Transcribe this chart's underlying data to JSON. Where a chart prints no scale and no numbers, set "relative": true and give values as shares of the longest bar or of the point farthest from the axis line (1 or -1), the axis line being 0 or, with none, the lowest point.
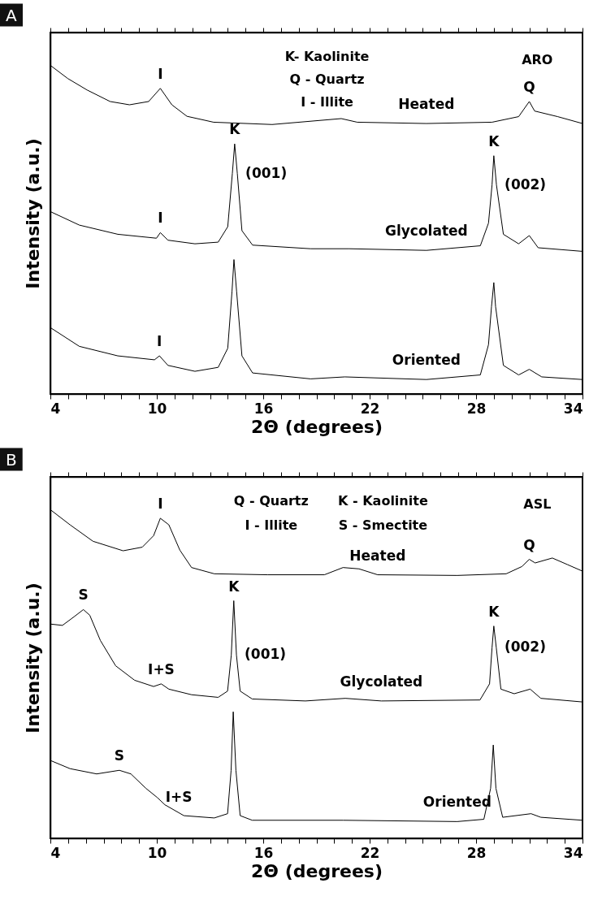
{
  "chart_data": [
    {
      "type": "line",
      "title": "A",
      "xlabel": "2Θ (degrees)",
      "ylabel": "Intensity (a.u.)",
      "relative": true,
      "legend": false,
      "grid": false,
      "marker": "none",
      "line_style": "solid",
      "xlim": [
        4,
        34
      ],
      "xticks": [
        4,
        {
          "value": 5,
          "label": null
        },
        {
          "value": 6,
          "label": null
        },
        {
          "value": 7,
          "label": null
        },
        {
          "value": 8,
          "label": null
        },
        {
          "value": 9,
          "label": null
        },
        10,
        {
          "value": 11,
          "label": null
        },
        {
          "value": 12,
          "label": null
        },
        {
          "value": 13,
          "label": null
        },
        {
          "value": 14,
          "label": null
        },
        {
          "value": 15,
          "label": null
        },
        16,
        {
          "value": 17,
          "label": null
        },
        {
          "value": 18,
          "label": null
        },
        {
          "value": 19,
          "label": null
        },
        {
          "value": 20,
          "label": null
        },
        {
          "value": 21,
          "label": null
        },
        22,
        {
          "value": 23,
          "label": null
        },
        {
          "value": 24,
          "label": null
        },
        {
          "value": 25,
          "label": null
        },
        {
          "value": 26,
          "label": null
        },
        {
          "value": 27,
          "label": null
        },
        28,
        {
          "value": 29,
          "label": null
        },
        {
          "value": 30,
          "label": null
        },
        {
          "value": 31,
          "label": null
        },
        {
          "value": 32,
          "label": null
        },
        {
          "value": 33,
          "label": null
        },
        34
      ],
      "series": [
        {
          "name": "Heated",
          "color": "#000000",
          "x": [
            4,
            4.98,
            6.07,
            7.37,
            8.46,
            9.54,
            10.2,
            10.85,
            11.7,
            13.2,
            16.5,
            20.4,
            21.3,
            25.2,
            28.9,
            30.4,
            31.0,
            31.3,
            32.6,
            34
          ],
          "values": [
            1.0,
            0.96,
            0.925,
            0.89,
            0.88,
            0.89,
            0.93,
            0.88,
            0.845,
            0.827,
            0.82,
            0.838,
            0.827,
            0.823,
            0.827,
            0.844,
            0.89,
            0.861,
            0.844,
            0.823
          ]
        },
        {
          "name": "Glycolated",
          "color": "#000000",
          "x": [
            4,
            5.63,
            7.8,
            9.98,
            10.2,
            10.63,
            12.15,
            13.46,
            14.0,
            14.26,
            14.39,
            14.54,
            14.8,
            15.4,
            18.67,
            20.85,
            25.2,
            28.24,
            28.7,
            28.9,
            29.0,
            29.15,
            29.54,
            30.4,
            31.0,
            31.5,
            34
          ],
          "values": [
            0.555,
            0.514,
            0.486,
            0.474,
            0.491,
            0.468,
            0.457,
            0.462,
            0.509,
            0.671,
            0.761,
            0.671,
            0.497,
            0.453,
            0.442,
            0.442,
            0.437,
            0.451,
            0.52,
            0.636,
            0.725,
            0.636,
            0.486,
            0.457,
            0.482,
            0.445,
            0.434
          ]
        },
        {
          "name": "Oriented",
          "color": "#000000",
          "x": [
            4,
            5.63,
            7.8,
            9.87,
            10.15,
            10.63,
            12.15,
            13.46,
            14.0,
            14.24,
            14.35,
            14.5,
            14.8,
            15.4,
            18.67,
            20.6,
            25.2,
            28.24,
            28.7,
            28.87,
            29.0,
            29.1,
            29.54,
            30.4,
            31.0,
            31.7,
            34
          ],
          "values": [
            0.202,
            0.145,
            0.116,
            0.104,
            0.116,
            0.087,
            0.069,
            0.081,
            0.139,
            0.312,
            0.409,
            0.312,
            0.116,
            0.064,
            0.046,
            0.052,
            0.044,
            0.058,
            0.15,
            0.266,
            0.339,
            0.266,
            0.087,
            0.058,
            0.075,
            0.052,
            0.044
          ]
        }
      ],
      "annotations": [
        "K- Kaolinite",
        "Q - Quartz",
        "I - Illite",
        "ARO",
        {
          "text": "I",
          "x": 10.2,
          "y": 0.93
        },
        {
          "text": "Q",
          "x": 31.0,
          "y": 0.89
        },
        {
          "text": "K",
          "x": 14.39,
          "y": 0.761
        },
        {
          "text": "(001)",
          "x": 14.54,
          "y": 0.671
        },
        {
          "text": "K",
          "x": 29.0,
          "y": 0.725
        },
        {
          "text": "(002)",
          "x": 29.15,
          "y": 0.636
        },
        {
          "text": "I",
          "x": 10.2,
          "y": 0.491
        },
        {
          "text": "I",
          "x": 10.15,
          "y": 0.116
        }
      ]
    },
    {
      "type": "line",
      "title": "B",
      "xlabel": "2Θ (degrees)",
      "ylabel": "Intensity (a.u.)",
      "relative": true,
      "legend": false,
      "grid": false,
      "marker": "none",
      "line_style": "solid",
      "xlim": [
        4,
        34
      ],
      "xticks": [
        4,
        {
          "value": 5,
          "label": null
        },
        {
          "value": 6,
          "label": null
        },
        {
          "value": 7,
          "label": null
        },
        {
          "value": 8,
          "label": null
        },
        {
          "value": 9,
          "label": null
        },
        10,
        {
          "value": 11,
          "label": null
        },
        {
          "value": 12,
          "label": null
        },
        {
          "value": 13,
          "label": null
        },
        {
          "value": 14,
          "label": null
        },
        {
          "value": 15,
          "label": null
        },
        16,
        {
          "value": 17,
          "label": null
        },
        {
          "value": 18,
          "label": null
        },
        {
          "value": 19,
          "label": null
        },
        {
          "value": 20,
          "label": null
        },
        {
          "value": 21,
          "label": null
        },
        22,
        {
          "value": 23,
          "label": null
        },
        {
          "value": 24,
          "label": null
        },
        {
          "value": 25,
          "label": null
        },
        {
          "value": 26,
          "label": null
        },
        {
          "value": 27,
          "label": null
        },
        28,
        {
          "value": 29,
          "label": null
        },
        {
          "value": 30,
          "label": null
        },
        {
          "value": 31,
          "label": null
        },
        {
          "value": 32,
          "label": null
        },
        {
          "value": 33,
          "label": null
        },
        34
      ],
      "series": [
        {
          "name": "Heated",
          "color": "#000000",
          "x": [
            4,
            5.11,
            6.4,
            8.1,
            9.18,
            9.82,
            10.2,
            10.68,
            11.3,
            11.96,
            13.24,
            16.24,
            19.45,
            20.5,
            21.4,
            22.45,
            26.94,
            29.7,
            30.58,
            31.0,
            31.33,
            32.3,
            33.15,
            34
          ],
          "values": [
            1.0,
            0.954,
            0.904,
            0.875,
            0.886,
            0.921,
            0.974,
            0.954,
            0.877,
            0.824,
            0.805,
            0.802,
            0.802,
            0.824,
            0.82,
            0.802,
            0.8,
            0.805,
            0.827,
            0.849,
            0.838,
            0.853,
            0.833,
            0.813
          ]
        },
        {
          "name": "Glycolated",
          "color": "#000000",
          "x": [
            4,
            4.68,
            5.33,
            5.86,
            6.22,
            6.82,
            7.68,
            8.75,
            9.82,
            10.25,
            10.68,
            11.96,
            13.46,
            13.99,
            14.2,
            14.34,
            14.49,
            14.7,
            15.38,
            18.38,
            20.63,
            22.66,
            28.22,
            28.76,
            28.9,
            29.0,
            29.14,
            29.4,
            30.15,
            31.05,
            31.65,
            34
          ],
          "values": [
            0.652,
            0.648,
            0.674,
            0.696,
            0.679,
            0.602,
            0.525,
            0.481,
            0.462,
            0.47,
            0.454,
            0.437,
            0.429,
            0.448,
            0.558,
            0.723,
            0.558,
            0.448,
            0.424,
            0.418,
            0.426,
            0.418,
            0.421,
            0.47,
            0.58,
            0.646,
            0.58,
            0.454,
            0.44,
            0.454,
            0.426,
            0.415
          ]
        },
        {
          "name": "Oriented",
          "color": "#000000",
          "x": [
            4,
            5.11,
            6.61,
            7.89,
            8.54,
            9.39,
            10.03,
            10.46,
            11.53,
            13.24,
            13.99,
            14.19,
            14.31,
            14.46,
            14.7,
            15.38,
            20.52,
            26.94,
            28.44,
            28.82,
            28.97,
            29.12,
            29.5,
            31.1,
            31.65,
            34
          ],
          "values": [
            0.237,
            0.212,
            0.196,
            0.207,
            0.196,
            0.152,
            0.124,
            0.102,
            0.069,
            0.062,
            0.075,
            0.207,
            0.385,
            0.207,
            0.069,
            0.055,
            0.055,
            0.051,
            0.058,
            0.152,
            0.284,
            0.152,
            0.064,
            0.075,
            0.064,
            0.055
          ]
        }
      ],
      "annotations": [
        "Q - Quartz",
        "I - Illite",
        "K - Kaolinite",
        "S - Smectite",
        "ASL",
        {
          "text": "I",
          "x": 10.2,
          "y": 0.974
        },
        {
          "text": "Q",
          "x": 31.0,
          "y": 0.849
        },
        {
          "text": "S",
          "x": 5.86,
          "y": 0.696
        },
        {
          "text": "K",
          "x": 14.34,
          "y": 0.723
        },
        {
          "text": "(001)",
          "x": 14.49,
          "y": 0.558
        },
        {
          "text": "I+S",
          "x": 10.25,
          "y": 0.47
        },
        {
          "text": "K",
          "x": 29.0,
          "y": 0.646
        },
        {
          "text": "(002)",
          "x": 29.14,
          "y": 0.58
        },
        {
          "text": "S",
          "x": 7.89,
          "y": 0.207
        },
        {
          "text": "I+S",
          "x": 10.03,
          "y": 0.124
        }
      ]
    }
  ]
}
